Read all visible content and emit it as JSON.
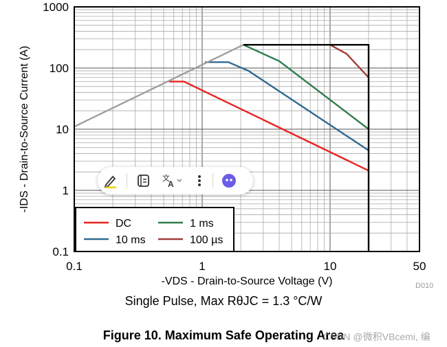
{
  "chart_data": {
    "type": "line",
    "title": "Figure 10. Maximum Safe Operating Area",
    "subtitle": "Single Pulse, Max RθJC = 1.3 °C/W",
    "xlabel": "-VDS - Drain-to-Source Voltage (V)",
    "ylabel": "-IDS - Drain-to-Source Current (A)",
    "xscale": "log",
    "yscale": "log",
    "xlim": [
      0.1,
      50
    ],
    "ylim": [
      0.1,
      1000
    ],
    "x_ticks": [
      "0.1",
      "1",
      "10",
      "50"
    ],
    "y_ticks": [
      "1000",
      "100",
      "10",
      "1",
      "0.1"
    ],
    "grid": true,
    "legend_position": "bottom-left",
    "series": [
      {
        "name": "DC",
        "color": "#e8231f",
        "x": [
          0.55,
          0.72,
          20
        ],
        "y": [
          60,
          60,
          2.1
        ]
      },
      {
        "name": "1 ms",
        "color": "#2e7d4f",
        "x": [
          2.1,
          4.0,
          20
        ],
        "y": [
          240,
          130,
          10
        ]
      },
      {
        "name": "10 ms",
        "color": "#2f6a8f",
        "x": [
          1.05,
          1.6,
          2.3,
          20
        ],
        "y": [
          125,
          125,
          90,
          4.5
        ]
      },
      {
        "name": "100 µs",
        "color": "#a43b3b",
        "x": [
          10,
          13.5,
          20
        ],
        "y": [
          240,
          170,
          70
        ]
      },
      {
        "name": "",
        "color": "#9e9e9e",
        "x": [
          0.1,
          2.1
        ],
        "y": [
          11,
          240
        ]
      },
      {
        "name": "",
        "color": "#000000",
        "x": [
          2.1,
          20,
          20
        ],
        "y": [
          240,
          240,
          0.1
        ]
      }
    ]
  },
  "doc_id": "D010",
  "watermark": "CSDN @微积VBcemi, 编",
  "toolbar": {
    "items": [
      {
        "name": "highlight-pen",
        "icon": "pen-icon"
      },
      {
        "name": "summarize",
        "icon": "doc-icon"
      },
      {
        "name": "translate",
        "icon": "translate-icon"
      },
      {
        "name": "more",
        "icon": "more-icon"
      },
      {
        "name": "assistant",
        "icon": "assistant-icon"
      }
    ],
    "accent": "#6c5ce7"
  }
}
